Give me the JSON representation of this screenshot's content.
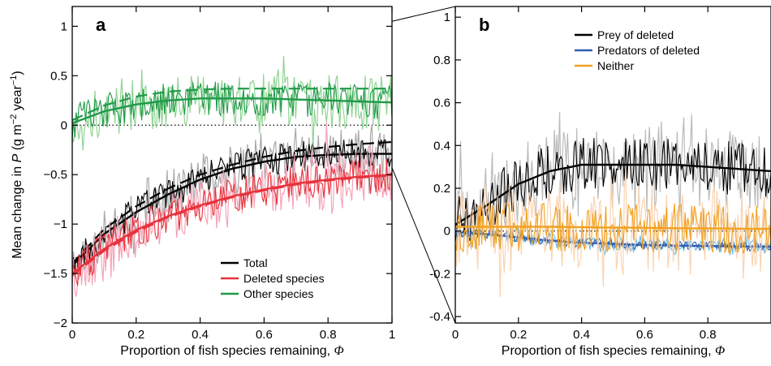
{
  "colors": {
    "total": "#000000",
    "total_band": "#a0a0a0",
    "deleted": "#e8323c",
    "deleted_band": "#f49ab0",
    "other": "#1f9a48",
    "other_band": "#86cf8a",
    "prey": "#000000",
    "prey_band": "#b4b4b4",
    "predators": "#2f5fb0",
    "predators_band": "#5fb8ea",
    "neither": "#f0a020",
    "neither_band": "#f8cfa8"
  },
  "chart_data": [
    {
      "type": "line",
      "panel_label": "a",
      "xlabel": "Proportion of fish species remaining, Φ",
      "ylabel": "Mean change in P (g m⁻² year⁻¹)",
      "ylabel_parts": {
        "pre": "Mean change in ",
        "var": "P",
        "mid": " (g m",
        "sup1": "−2",
        "mid2": " year",
        "sup2": "−1",
        "post": ")"
      },
      "xlim": [
        0,
        1
      ],
      "ylim": [
        -2,
        1.2
      ],
      "xticks": [
        0,
        0.2,
        0.4,
        0.6,
        0.8,
        1
      ],
      "xtick_labels": [
        "0",
        "0.2",
        "0.4",
        "0.6",
        "0.8",
        "1"
      ],
      "yticks": [
        -2,
        -1.5,
        -1,
        -0.5,
        0,
        0.5,
        1
      ],
      "ytick_labels": [
        "−2",
        "−1.5",
        "−1",
        "−0.5",
        "0",
        "0.5",
        "1"
      ],
      "reference_line": {
        "y": 0,
        "style": "dotted"
      },
      "legend_position": "bottom-right",
      "series": [
        {
          "name": "Total",
          "color_key": "total",
          "fit": {
            "x": [
              0,
              0.1,
              0.2,
              0.3,
              0.4,
              0.5,
              0.6,
              0.7,
              0.8,
              0.9,
              1.0
            ],
            "y": [
              -1.42,
              -1.1,
              -0.88,
              -0.7,
              -0.55,
              -0.44,
              -0.37,
              -0.32,
              -0.3,
              -0.29,
              -0.29
            ]
          },
          "fit_dashed": {
            "x": [
              0,
              0.1,
              0.2,
              0.3,
              0.4,
              0.5,
              0.6,
              0.7,
              0.8,
              0.9,
              1.0
            ],
            "y": [
              -1.4,
              -1.05,
              -0.82,
              -0.64,
              -0.5,
              -0.4,
              -0.32,
              -0.26,
              -0.22,
              -0.19,
              -0.17
            ]
          },
          "noise": {
            "amplitude": 0.18,
            "seed": 11
          }
        },
        {
          "name": "Deleted species",
          "color_key": "deleted",
          "fit": {
            "x": [
              0,
              0.1,
              0.2,
              0.3,
              0.4,
              0.5,
              0.6,
              0.7,
              0.8,
              0.9,
              1.0
            ],
            "y": [
              -1.5,
              -1.25,
              -1.06,
              -0.92,
              -0.81,
              -0.72,
              -0.65,
              -0.59,
              -0.55,
              -0.52,
              -0.5
            ]
          },
          "fit_dashed": {
            "x": [
              0,
              0.1,
              0.2,
              0.3,
              0.4,
              0.5,
              0.6,
              0.7,
              0.8,
              0.9,
              1.0
            ],
            "y": [
              -1.52,
              -1.27,
              -1.08,
              -0.93,
              -0.82,
              -0.73,
              -0.66,
              -0.6,
              -0.56,
              -0.53,
              -0.51
            ]
          },
          "noise": {
            "amplitude": 0.2,
            "seed": 23
          }
        },
        {
          "name": "Other species",
          "color_key": "other",
          "fit": {
            "x": [
              0,
              0.1,
              0.2,
              0.3,
              0.4,
              0.5,
              0.6,
              0.7,
              0.8,
              0.9,
              1.0
            ],
            "y": [
              0.02,
              0.14,
              0.21,
              0.25,
              0.27,
              0.27,
              0.27,
              0.26,
              0.25,
              0.24,
              0.23
            ]
          },
          "fit_dashed": {
            "x": [
              0,
              0.1,
              0.2,
              0.3,
              0.4,
              0.5,
              0.6,
              0.7,
              0.8,
              0.9,
              1.0
            ],
            "y": [
              0.05,
              0.2,
              0.29,
              0.34,
              0.36,
              0.37,
              0.37,
              0.37,
              0.37,
              0.37,
              0.37
            ]
          },
          "noise": {
            "amplitude": 0.2,
            "seed": 37
          }
        }
      ]
    },
    {
      "type": "line",
      "panel_label": "b",
      "xlabel": "Proportion of fish species remaining, Φ",
      "xlim": [
        0,
        1
      ],
      "ylim": [
        -0.43,
        1.05
      ],
      "xticks": [
        0,
        0.2,
        0.4,
        0.6,
        0.8
      ],
      "xtick_labels": [
        "0",
        "0.2",
        "0.4",
        "0.6",
        "0.8"
      ],
      "yticks": [
        -0.4,
        -0.2,
        0,
        0.2,
        0.4,
        0.6,
        0.8,
        1
      ],
      "ytick_labels": [
        "-0.4",
        "-0.2",
        "0",
        "0.2",
        "0.4",
        "0.6",
        "0.8",
        "1"
      ],
      "reference_line": {
        "y": 0,
        "style": "dotted"
      },
      "legend_position": "top-right",
      "inset_of": {
        "panel": "a",
        "x": 1,
        "y_range": [
          -0.43,
          1.05
        ]
      },
      "series": [
        {
          "name": "Prey of deleted",
          "color_key": "prey",
          "fit": {
            "x": [
              0,
              0.1,
              0.2,
              0.3,
              0.4,
              0.5,
              0.6,
              0.7,
              0.8,
              0.9,
              1.0
            ],
            "y": [
              0.03,
              0.12,
              0.22,
              0.28,
              0.31,
              0.31,
              0.31,
              0.31,
              0.3,
              0.29,
              0.28
            ]
          },
          "noise": {
            "amplitude": 0.14,
            "seed": 41
          }
        },
        {
          "name": "Predators of deleted",
          "color_key": "predators",
          "fit": {
            "x": [
              0,
              0.1,
              0.2,
              0.3,
              0.4,
              0.5,
              0.6,
              0.7,
              0.8,
              0.9,
              1.0
            ],
            "y": [
              -0.005,
              -0.015,
              -0.03,
              -0.045,
              -0.055,
              -0.06,
              -0.065,
              -0.068,
              -0.07,
              -0.072,
              -0.073
            ]
          },
          "noise": {
            "amplitude": 0.025,
            "seed": 53
          }
        },
        {
          "name": "Neither",
          "color_key": "neither",
          "fit": {
            "x": [
              0,
              0.1,
              0.2,
              0.3,
              0.4,
              0.5,
              0.6,
              0.7,
              0.8,
              0.9,
              1.0
            ],
            "y": [
              0.02,
              0.02,
              0.02,
              0.02,
              0.018,
              0.016,
              0.015,
              0.013,
              0.012,
              0.011,
              0.01
            ]
          },
          "noise": {
            "amplitude": 0.13,
            "seed": 67
          }
        }
      ]
    }
  ]
}
